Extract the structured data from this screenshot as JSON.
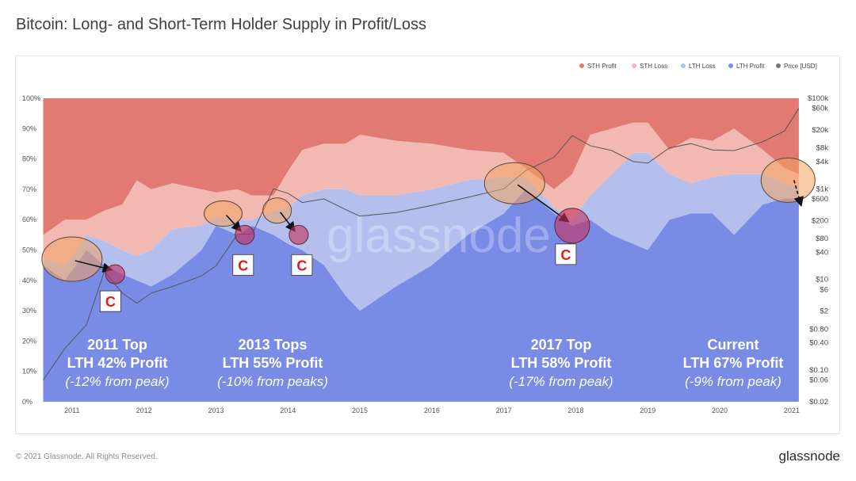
{
  "title": "Bitcoin: Long- and Short-Term Holder Supply in Profit/Loss",
  "footer": {
    "copyright": "© 2021 Glassnode. All Rights Reserved.",
    "brand": "glassnode"
  },
  "watermark": "glassnode",
  "colors": {
    "sth_profit": "#e07a73",
    "sth_loss": "#f2b9b3",
    "lth_loss": "#b4bfee",
    "lth_profit": "#7a8be6",
    "price": "#555555",
    "highlight": "#f4a460",
    "callout": "#dd1e1e"
  },
  "chart_data": {
    "type": "area",
    "stacking": "percent",
    "legend_position": "top-right",
    "legend": [
      "STH Profit",
      "STH Loss",
      "LTH Loss",
      "LTH Profit",
      "Price [USD]"
    ],
    "x": [
      2010.6,
      2010.9,
      2011.2,
      2011.45,
      2011.7,
      2011.9,
      2012.1,
      2012.4,
      2012.8,
      2013.0,
      2013.3,
      2013.5,
      2013.8,
      2014.0,
      2014.2,
      2014.5,
      2014.8,
      2015.0,
      2015.5,
      2016.0,
      2016.5,
      2017.0,
      2017.3,
      2017.7,
      2017.95,
      2018.2,
      2018.5,
      2018.8,
      2019.0,
      2019.3,
      2019.6,
      2019.9,
      2020.2,
      2020.6,
      2020.9,
      2021.1
    ],
    "series": [
      {
        "name": "LTH Profit",
        "values": [
          45,
          40,
          50,
          45,
          42,
          40,
          38,
          42,
          50,
          58,
          55,
          58,
          55,
          52,
          50,
          45,
          35,
          30,
          38,
          45,
          55,
          62,
          70,
          62,
          58,
          60,
          55,
          52,
          50,
          60,
          62,
          62,
          55,
          65,
          67,
          67
        ]
      },
      {
        "name": "LTH Loss",
        "values": [
          2,
          5,
          5,
          8,
          8,
          8,
          12,
          15,
          8,
          3,
          5,
          2,
          8,
          12,
          18,
          25,
          35,
          38,
          30,
          25,
          18,
          12,
          4,
          2,
          2,
          8,
          20,
          30,
          32,
          15,
          10,
          12,
          20,
          10,
          5,
          4
        ]
      },
      {
        "name": "STH Loss",
        "values": [
          8,
          15,
          5,
          10,
          15,
          25,
          20,
          15,
          12,
          8,
          10,
          8,
          5,
          12,
          15,
          15,
          15,
          20,
          18,
          15,
          10,
          8,
          3,
          6,
          15,
          20,
          15,
          10,
          10,
          8,
          15,
          12,
          15,
          8,
          5,
          4
        ]
      },
      {
        "name": "STH Profit",
        "values": [
          45,
          40,
          40,
          37,
          35,
          27,
          30,
          28,
          30,
          31,
          30,
          32,
          32,
          24,
          17,
          15,
          15,
          12,
          14,
          15,
          17,
          18,
          23,
          30,
          25,
          12,
          10,
          8,
          8,
          17,
          13,
          14,
          10,
          17,
          23,
          25
        ]
      },
      {
        "name": "Price [USD]",
        "axis": "right-log",
        "values": [
          0.06,
          0.3,
          1,
          15,
          5,
          3,
          5,
          7,
          12,
          20,
          100,
          100,
          1000,
          800,
          500,
          600,
          350,
          250,
          300,
          430,
          650,
          1000,
          2500,
          5000,
          15000,
          9000,
          7000,
          4000,
          3700,
          8000,
          10000,
          7200,
          7000,
          11000,
          19000,
          60000
        ]
      }
    ],
    "xticks": [
      "2011",
      "2012",
      "2013",
      "2014",
      "2015",
      "2016",
      "2017",
      "2018",
      "2019",
      "2020",
      "2021"
    ],
    "xlim": [
      2010.55,
      2021.2
    ],
    "yticks_left": [
      "0%",
      "10%",
      "20%",
      "30%",
      "40%",
      "50%",
      "60%",
      "70%",
      "80%",
      "90%",
      "100%"
    ],
    "ylim_left": [
      0,
      100
    ],
    "yticks_right": [
      {
        "label": "$100k",
        "v": 100000
      },
      {
        "label": "$60k",
        "v": 60000
      },
      {
        "label": "$20k",
        "v": 20000
      },
      {
        "label": "$8k",
        "v": 8000
      },
      {
        "label": "$4k",
        "v": 4000
      },
      {
        "label": "$1k",
        "v": 1000
      },
      {
        "label": "$600",
        "v": 600
      },
      {
        "label": "$200",
        "v": 200
      },
      {
        "label": "$80",
        "v": 80
      },
      {
        "label": "$40",
        "v": 40
      },
      {
        "label": "$10",
        "v": 10
      },
      {
        "label": "$6",
        "v": 6
      },
      {
        "label": "$2",
        "v": 2
      },
      {
        "label": "$0.80",
        "v": 0.8
      },
      {
        "label": "$0.40",
        "v": 0.4
      },
      {
        "label": "$0.10",
        "v": 0.1
      },
      {
        "label": "$0.06",
        "v": 0.06
      },
      {
        "label": "$0.02",
        "v": 0.02
      }
    ],
    "ylim_right": [
      0.02,
      100000
    ],
    "annotations": [
      {
        "lines": [
          "2011 Top",
          "LTH 42% Profit",
          "(-12% from peak)"
        ],
        "x": 2011.05
      },
      {
        "lines": [
          "2013 Tops",
          "LTH 55% Profit",
          "(-10% from peaks)"
        ],
        "x": 2013.3
      },
      {
        "lines": [
          "2017 Top",
          "LTH 58% Profit",
          "(-17% from peak)"
        ],
        "x": 2017.25
      },
      {
        "lines": [
          "Current",
          "LTH 67% Profit",
          "(-9% from peak)"
        ],
        "x": 2019.6
      }
    ],
    "tops": [
      {
        "x": 2011.0,
        "y": 47
      },
      {
        "x": 2013.1,
        "y": 62
      },
      {
        "x": 2013.85,
        "y": 63
      },
      {
        "x": 2017.15,
        "y": 72
      },
      {
        "x": 2020.95,
        "y": 73
      }
    ],
    "bottoms": [
      {
        "x": 2011.6,
        "y": 42,
        "label": "C"
      },
      {
        "x": 2013.4,
        "y": 55,
        "label": "C"
      },
      {
        "x": 2014.15,
        "y": 55,
        "label": "C"
      },
      {
        "x": 2017.95,
        "y": 58,
        "label": "C"
      }
    ]
  }
}
